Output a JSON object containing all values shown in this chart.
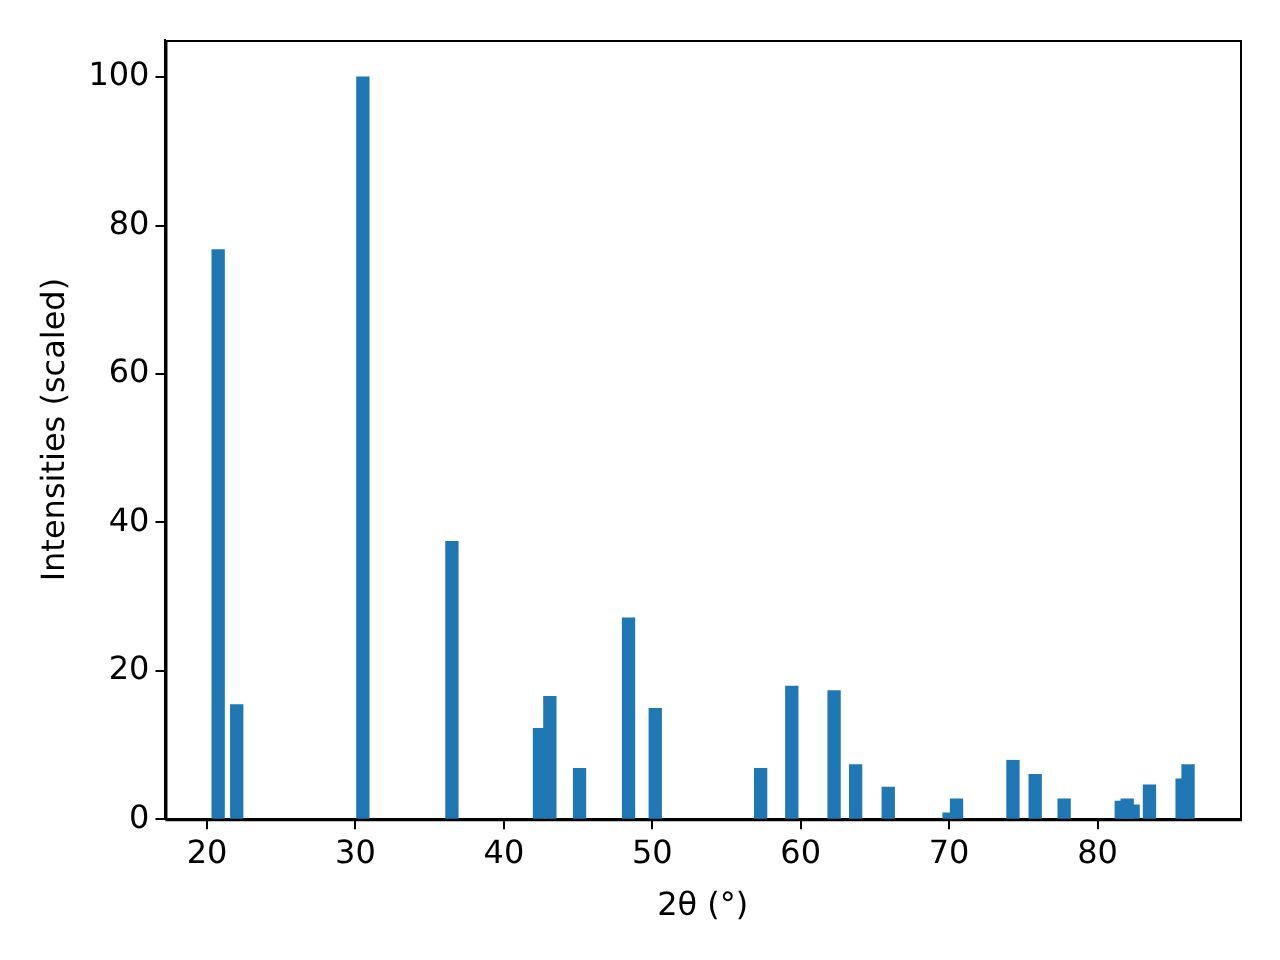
{
  "chart_data": {
    "type": "bar",
    "xlabel": "2θ (°)",
    "ylabel": "Intensities (scaled)",
    "x": [
      20.75,
      22.0,
      30.5,
      36.5,
      42.4,
      43.1,
      45.1,
      48.4,
      50.2,
      57.3,
      59.4,
      62.25,
      63.7,
      65.9,
      70.0,
      70.5,
      74.3,
      75.8,
      77.75,
      81.6,
      82.0,
      82.4,
      83.5,
      85.7,
      86.1
    ],
    "values": [
      76.7,
      15.4,
      100,
      37.4,
      12.2,
      16.5,
      6.8,
      27.1,
      14.9,
      6.8,
      17.9,
      17.3,
      7.3,
      4.3,
      0.8,
      2.7,
      7.9,
      6.0,
      2.7,
      2.4,
      2.7,
      1.9,
      4.6,
      5.4,
      7.3
    ],
    "color": "#1f77b4",
    "xlim": [
      17.2,
      89.6
    ],
    "xticks": [
      20,
      30,
      40,
      50,
      60,
      70,
      80
    ],
    "ylim": [
      0,
      105
    ],
    "yticks": [
      0,
      20,
      40,
      60,
      80,
      100
    ],
    "grid": false,
    "legend": false
  }
}
